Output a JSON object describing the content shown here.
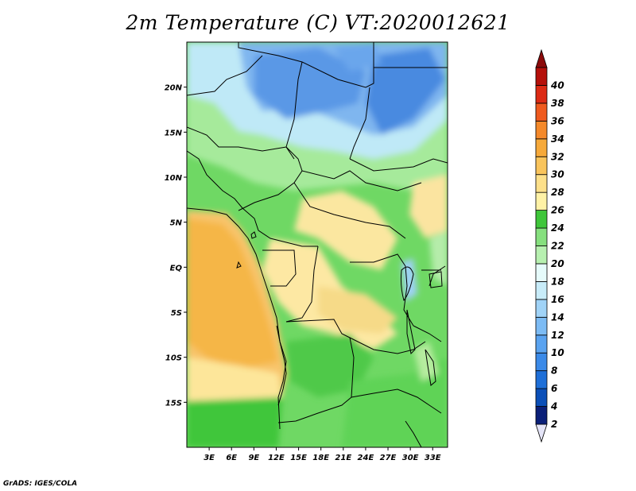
{
  "title": "2m Temperature (C) VT:2020012621",
  "credit": "GrADS: IGES/COLA",
  "map": {
    "lon_range": [
      0,
      35
    ],
    "lat_range": [
      -20,
      25
    ],
    "lat_ticks": [
      "20N",
      "15N",
      "10N",
      "5N",
      "EQ",
      "5S",
      "10S",
      "15S"
    ],
    "lon_ticks": [
      "3E",
      "6E",
      "9E",
      "12E",
      "15E",
      "18E",
      "21E",
      "24E",
      "27E",
      "30E",
      "33E"
    ]
  },
  "colorbar": {
    "labels": [
      "2",
      "4",
      "6",
      "8",
      "10",
      "12",
      "14",
      "16",
      "18",
      "20",
      "22",
      "24",
      "26",
      "28",
      "30",
      "32",
      "34",
      "36",
      "38",
      "40"
    ],
    "colors": [
      "#0a1f78",
      "#0b4fb8",
      "#1e6fd8",
      "#3b8ae8",
      "#5aa3f0",
      "#7cbbf4",
      "#a0d3f7",
      "#c8ecf9",
      "#e6fbfb",
      "#b7f0b0",
      "#86e07e",
      "#3fc63a",
      "#fff2a6",
      "#fde08a",
      "#f9c45c",
      "#f6a93a",
      "#f4892a",
      "#ef5a1e",
      "#dc2a14",
      "#b5100a"
    ]
  }
}
